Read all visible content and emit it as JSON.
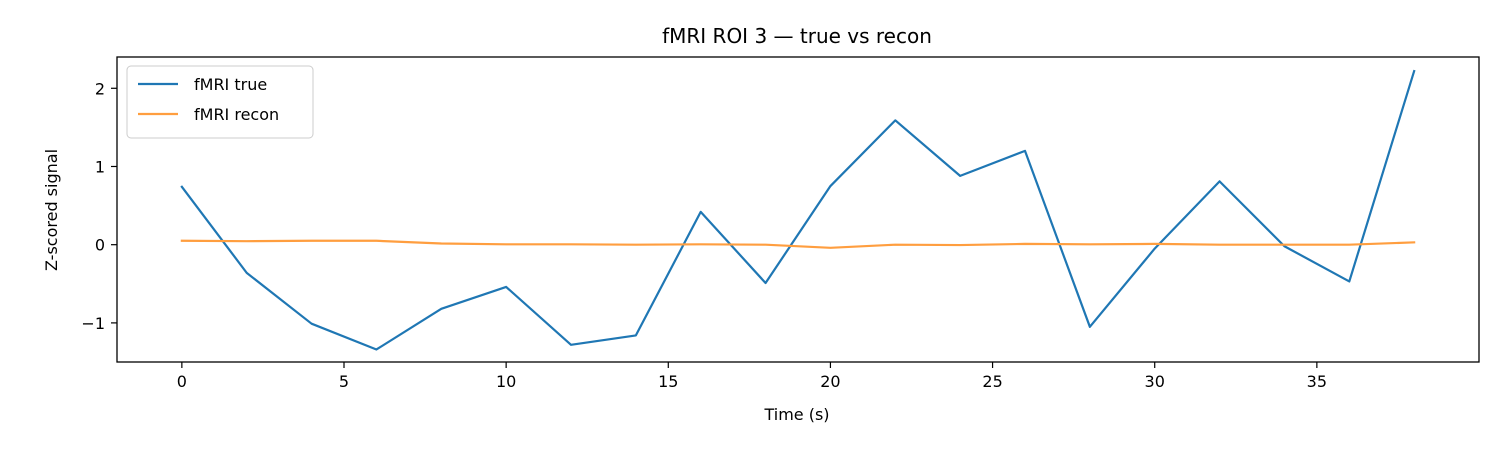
{
  "chart_data": {
    "type": "line",
    "title": "fMRI ROI 3 — true vs recon",
    "xlabel": "Time (s)",
    "ylabel": "Z-scored signal",
    "xlim": [
      -2,
      40
    ],
    "ylim": [
      -1.5,
      2.4
    ],
    "xticks": [
      0,
      5,
      10,
      15,
      20,
      25,
      30,
      35
    ],
    "xtick_labels": [
      "0",
      "5",
      "10",
      "15",
      "20",
      "25",
      "30",
      "35"
    ],
    "yticks": [
      -1,
      0,
      1,
      2
    ],
    "ytick_labels": [
      "−1",
      "0",
      "1",
      "2"
    ],
    "grid": false,
    "legend_position": "top-left",
    "x": [
      0,
      2,
      4,
      6,
      8,
      10,
      12,
      14,
      16,
      18,
      20,
      22,
      24,
      26,
      28,
      30,
      32,
      34,
      36,
      38
    ],
    "series": [
      {
        "name": "fMRI true",
        "color": "#1f77b4",
        "values": [
          0.74,
          -0.36,
          -1.01,
          -1.34,
          -0.82,
          -0.54,
          -1.28,
          -1.16,
          0.42,
          -0.49,
          0.75,
          1.59,
          0.88,
          1.2,
          -1.05,
          -0.05,
          0.81,
          -0.02,
          -0.47,
          2.22
        ]
      },
      {
        "name": "fMRI recon",
        "color": "#ff9e3f",
        "values": [
          0.05,
          0.045,
          0.05,
          0.05,
          0.015,
          0.005,
          0.005,
          0.0,
          0.005,
          0.0,
          -0.04,
          0.0,
          -0.005,
          0.01,
          0.005,
          0.01,
          0.0,
          0.0,
          0.0,
          0.03
        ]
      }
    ]
  }
}
